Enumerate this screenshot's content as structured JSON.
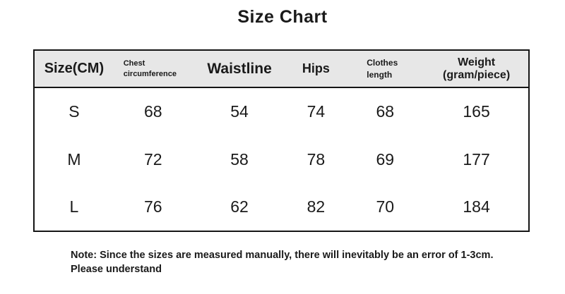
{
  "chart_data": {
    "type": "table",
    "title": "Size Chart",
    "columns": [
      "Size(CM)",
      "Chest circumference",
      "Waistline",
      "Hips",
      "Clothes length",
      "Weight (gram/piece)"
    ],
    "rows": [
      [
        "S",
        "68",
        "54",
        "74",
        "68",
        "165"
      ],
      [
        "M",
        "72",
        "58",
        "78",
        "69",
        "177"
      ],
      [
        "L",
        "76",
        "62",
        "82",
        "70",
        "184"
      ]
    ],
    "layout": {
      "header_background": "#e7e7e7",
      "border_color": "#151515",
      "grid": "outer-border-and-header-separator-only"
    }
  },
  "note": {
    "line1": "Note: Since the sizes are measured manually, there will inevitably be an error of 1-3cm.",
    "line2": "Please understand"
  },
  "colors": {
    "header_bg": "#e7e7e7",
    "border": "#151515",
    "text": "#1a1a1a",
    "page_bg": "#ffffff"
  }
}
